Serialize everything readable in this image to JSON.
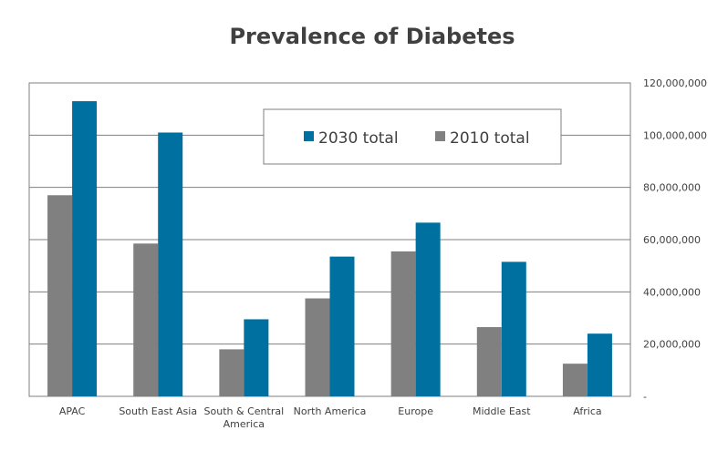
{
  "chart_data": {
    "type": "bar",
    "title": "Prevalence of Diabetes",
    "xlabel": "",
    "ylabel": "",
    "categories": [
      "APAC",
      "South East Asia",
      "South & Central America",
      "North America",
      "Europe",
      "Middle East",
      "Africa"
    ],
    "series": [
      {
        "name": "2010 total",
        "color": "#808080",
        "values": [
          77000000,
          58500000,
          18000000,
          37500000,
          55500000,
          26500000,
          12500000
        ]
      },
      {
        "name": "2030 total",
        "color": "#0070a0",
        "values": [
          113000000,
          101000000,
          29500000,
          53500000,
          66500000,
          51500000,
          24000000
        ]
      }
    ],
    "ylim": [
      0,
      120000000
    ],
    "yticks": [
      0,
      20000000,
      40000000,
      60000000,
      80000000,
      100000000,
      120000000
    ],
    "ytick_labels": [
      "-",
      "20,000,000",
      "40,000,000",
      "60,000,000",
      "80,000,000",
      "100,000,000",
      "120,000,000"
    ],
    "y_axis_side": "right",
    "grid": true,
    "legend": {
      "placement": "top-right",
      "order": [
        "2030 total",
        "2010 total"
      ]
    }
  }
}
